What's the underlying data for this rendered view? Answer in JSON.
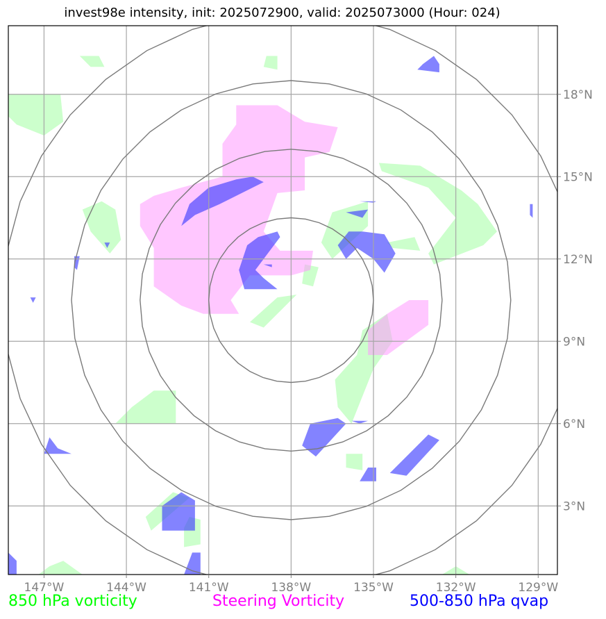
{
  "title": "invest98e intensity, init: 2025072900, valid: 2025073000 (Hour: 024)",
  "map_extent": {
    "lon_min": -148.3,
    "lon_max": -128.3,
    "lat_min": 0.5,
    "lat_max": 20.5
  },
  "center": {
    "lon": -138.0,
    "lat": 10.5
  },
  "range_rings_deg": [
    3,
    5.5,
    8,
    10.5
  ],
  "lon_ticks": [
    {
      "value": -147,
      "label": "147°W"
    },
    {
      "value": -144,
      "label": "144°W"
    },
    {
      "value": -141,
      "label": "141°W"
    },
    {
      "value": -138,
      "label": "138°W"
    },
    {
      "value": -135,
      "label": "135°W"
    },
    {
      "value": -132,
      "label": "132°W"
    },
    {
      "value": -129,
      "label": "129°W"
    }
  ],
  "lat_ticks": [
    {
      "value": 3,
      "label": "3°N"
    },
    {
      "value": 6,
      "label": "6°N"
    },
    {
      "value": 9,
      "label": "9°N"
    },
    {
      "value": 12,
      "label": "12°N"
    },
    {
      "value": 15,
      "label": "15°N"
    },
    {
      "value": 18,
      "label": "18°N"
    }
  ],
  "legend": {
    "green": {
      "label": "850 hPa vorticity",
      "color": "#00ff00"
    },
    "magenta": {
      "label": "Steering Vorticity",
      "color": "#ff00ff"
    },
    "blue": {
      "label": "500-850 hPa qvap",
      "color": "#0000ff"
    }
  },
  "layers": {
    "green": {
      "color": "#ccffcc",
      "polygons": [
        [
          [
            -145.7,
            19.4
          ],
          [
            -145.0,
            19.4
          ],
          [
            -144.8,
            19.0
          ],
          [
            -145.3,
            19.0
          ]
        ],
        [
          [
            -148.3,
            18.0
          ],
          [
            -146.4,
            18.0
          ],
          [
            -146.3,
            17.0
          ],
          [
            -147.0,
            16.5
          ],
          [
            -148.0,
            16.9
          ],
          [
            -148.3,
            17.2
          ]
        ],
        [
          [
            -138.9,
            19.4
          ],
          [
            -138.5,
            19.4
          ],
          [
            -138.5,
            18.9
          ],
          [
            -139.0,
            19.0
          ]
        ],
        [
          [
            -134.8,
            15.5
          ],
          [
            -133.3,
            15.4
          ],
          [
            -131.8,
            14.5
          ],
          [
            -131.2,
            14.0
          ],
          [
            -130.5,
            13.0
          ],
          [
            -131.0,
            12.5
          ],
          [
            -132.8,
            11.8
          ],
          [
            -133.0,
            12.2
          ],
          [
            -132.0,
            13.5
          ],
          [
            -133.0,
            14.6
          ],
          [
            -134.7,
            15.2
          ]
        ],
        [
          [
            -134.5,
            12.6
          ],
          [
            -133.5,
            12.8
          ],
          [
            -133.3,
            12.3
          ],
          [
            -134.3,
            12.4
          ]
        ],
        [
          [
            -135.2,
            14.1
          ],
          [
            -136.5,
            13.7
          ],
          [
            -136.9,
            12.6
          ],
          [
            -136.5,
            12.0
          ],
          [
            -135.2,
            13.2
          ]
        ],
        [
          [
            -144.9,
            14.1
          ],
          [
            -144.4,
            13.8
          ],
          [
            -144.2,
            12.7
          ],
          [
            -144.6,
            12.2
          ],
          [
            -145.3,
            13.0
          ],
          [
            -145.6,
            13.8
          ]
        ],
        [
          [
            -134.5,
            10.0
          ],
          [
            -134.3,
            9.0
          ],
          [
            -135.0,
            8.0
          ],
          [
            -135.8,
            6.0
          ],
          [
            -136.3,
            6.6
          ],
          [
            -136.4,
            7.6
          ],
          [
            -135.6,
            8.5
          ],
          [
            -135.4,
            9.4
          ]
        ],
        [
          [
            -138.5,
            10.6
          ],
          [
            -137.8,
            10.7
          ],
          [
            -139.0,
            9.5
          ],
          [
            -139.5,
            9.7
          ]
        ],
        [
          [
            -137.5,
            11.8
          ],
          [
            -137.0,
            11.7
          ],
          [
            -137.2,
            11.0
          ],
          [
            -137.6,
            11.1
          ]
        ],
        [
          [
            -143.0,
            7.2
          ],
          [
            -142.2,
            7.2
          ],
          [
            -142.2,
            6.0
          ],
          [
            -144.4,
            6.0
          ],
          [
            -143.8,
            6.6
          ]
        ],
        [
          [
            -136.0,
            4.9
          ],
          [
            -135.4,
            4.9
          ],
          [
            -135.4,
            4.3
          ],
          [
            -136.0,
            4.4
          ]
        ],
        [
          [
            -142.3,
            3.5
          ],
          [
            -141.7,
            3.3
          ],
          [
            -143.1,
            2.1
          ],
          [
            -143.3,
            2.6
          ]
        ],
        [
          [
            -141.7,
            2.6
          ],
          [
            -141.3,
            2.5
          ],
          [
            -141.3,
            1.6
          ],
          [
            -141.9,
            1.5
          ],
          [
            -141.9,
            2.2
          ]
        ],
        [
          [
            -146.3,
            1.0
          ],
          [
            -145.6,
            0.5
          ],
          [
            -147.2,
            0.5
          ],
          [
            -146.8,
            0.8
          ]
        ],
        [
          [
            -132.0,
            0.8
          ],
          [
            -132.5,
            0.5
          ],
          [
            -131.5,
            0.5
          ]
        ]
      ]
    },
    "magenta": {
      "color": "#ff99ff",
      "opacity": 0.55,
      "polygons": [
        [
          [
            -140.0,
            17.6
          ],
          [
            -138.5,
            17.6
          ],
          [
            -137.5,
            17.0
          ],
          [
            -136.3,
            16.8
          ],
          [
            -136.6,
            15.9
          ],
          [
            -137.5,
            15.7
          ],
          [
            -137.5,
            14.5
          ],
          [
            -138.5,
            14.4
          ],
          [
            -139.0,
            13.0
          ],
          [
            -138.4,
            12.3
          ],
          [
            -137.2,
            12.3
          ],
          [
            -137.3,
            11.6
          ],
          [
            -138.0,
            11.4
          ],
          [
            -139.5,
            11.4
          ],
          [
            -140.2,
            10.5
          ],
          [
            -139.9,
            10.0
          ],
          [
            -141.2,
            10.0
          ],
          [
            -142.0,
            10.3
          ],
          [
            -143.0,
            11.0
          ],
          [
            -143.0,
            12.4
          ],
          [
            -143.5,
            13.2
          ],
          [
            -143.5,
            14.0
          ],
          [
            -143.0,
            14.3
          ],
          [
            -142.0,
            14.6
          ],
          [
            -140.5,
            15.0
          ],
          [
            -140.5,
            16.2
          ],
          [
            -140.0,
            16.9
          ]
        ],
        [
          [
            -134.5,
            10.0
          ],
          [
            -133.7,
            10.5
          ],
          [
            -133.0,
            10.5
          ],
          [
            -133.0,
            9.6
          ],
          [
            -134.5,
            8.5
          ],
          [
            -135.2,
            8.5
          ],
          [
            -135.2,
            9.4
          ]
        ]
      ]
    },
    "blue": {
      "color": "#4040ff",
      "opacity": 0.65,
      "polygons": [
        [
          [
            -132.8,
            19.4
          ],
          [
            -132.6,
            19.1
          ],
          [
            -132.6,
            18.8
          ],
          [
            -133.4,
            18.9
          ],
          [
            -133.2,
            19.1
          ]
        ],
        [
          [
            -139.4,
            15.0
          ],
          [
            -139.0,
            14.8
          ],
          [
            -140.6,
            14.0
          ],
          [
            -141.5,
            13.6
          ],
          [
            -142.0,
            13.2
          ],
          [
            -141.7,
            14.0
          ],
          [
            -141.0,
            14.6
          ],
          [
            -140.0,
            14.9
          ]
        ],
        [
          [
            -138.5,
            13.0
          ],
          [
            -138.4,
            12.8
          ],
          [
            -139.3,
            11.6
          ],
          [
            -139.0,
            11.3
          ],
          [
            -138.5,
            10.9
          ],
          [
            -139.7,
            10.9
          ],
          [
            -139.9,
            11.6
          ],
          [
            -139.6,
            12.5
          ],
          [
            -139.2,
            12.8
          ]
        ],
        [
          [
            -135.4,
            13.0
          ],
          [
            -134.6,
            12.9
          ],
          [
            -134.2,
            12.2
          ],
          [
            -134.6,
            11.5
          ],
          [
            -135.0,
            12.0
          ],
          [
            -135.6,
            12.4
          ],
          [
            -136.0,
            12.0
          ],
          [
            -136.3,
            12.5
          ],
          [
            -135.9,
            13.0
          ]
        ],
        [
          [
            -136.0,
            13.7
          ],
          [
            -135.2,
            13.8
          ],
          [
            -135.4,
            13.5
          ]
        ],
        [
          [
            -136.3,
            6.2
          ],
          [
            -136.0,
            6.0
          ],
          [
            -137.1,
            4.8
          ],
          [
            -137.6,
            5.2
          ],
          [
            -137.3,
            6.0
          ]
        ],
        [
          [
            -133.0,
            5.6
          ],
          [
            -132.6,
            5.4
          ],
          [
            -133.8,
            4.1
          ],
          [
            -134.4,
            4.2
          ]
        ],
        [
          [
            -135.2,
            4.4
          ],
          [
            -134.9,
            4.4
          ],
          [
            -134.9,
            3.9
          ],
          [
            -135.5,
            3.9
          ]
        ],
        [
          [
            -142.0,
            3.5
          ],
          [
            -141.5,
            3.2
          ],
          [
            -141.5,
            2.1
          ],
          [
            -142.7,
            2.1
          ],
          [
            -142.7,
            3.0
          ]
        ],
        [
          [
            -146.8,
            5.5
          ],
          [
            -146.5,
            5.1
          ],
          [
            -146.0,
            4.9
          ],
          [
            -147.0,
            4.9
          ]
        ],
        [
          [
            -148.3,
            1.3
          ],
          [
            -148.0,
            1.0
          ],
          [
            -148.0,
            0.5
          ],
          [
            -148.3,
            0.5
          ]
        ],
        [
          [
            -141.6,
            1.3
          ],
          [
            -141.3,
            1.3
          ],
          [
            -141.3,
            0.5
          ],
          [
            -141.9,
            0.5
          ]
        ],
        [
          [
            -135.8,
            6.1
          ],
          [
            -135.2,
            6.1
          ],
          [
            -135.5,
            6.0
          ]
        ],
        [
          [
            -135.5,
            14.1
          ],
          [
            -134.9,
            14.1
          ],
          [
            -135.0,
            14.05
          ]
        ],
        [
          [
            -139.0,
            11.8
          ],
          [
            -138.7,
            11.8
          ],
          [
            -138.7,
            11.7
          ]
        ],
        [
          [
            -144.8,
            12.6
          ],
          [
            -144.6,
            12.6
          ],
          [
            -144.7,
            12.4
          ]
        ],
        [
          [
            -129.3,
            14.0
          ],
          [
            -129.2,
            14.0
          ],
          [
            -129.2,
            13.5
          ],
          [
            -129.3,
            13.6
          ]
        ],
        [
          [
            -147.5,
            10.6
          ],
          [
            -147.3,
            10.6
          ],
          [
            -147.4,
            10.4
          ]
        ],
        [
          [
            -145.9,
            12.1
          ],
          [
            -145.7,
            12.1
          ],
          [
            -145.8,
            11.6
          ],
          [
            -145.9,
            11.7
          ]
        ]
      ]
    }
  }
}
